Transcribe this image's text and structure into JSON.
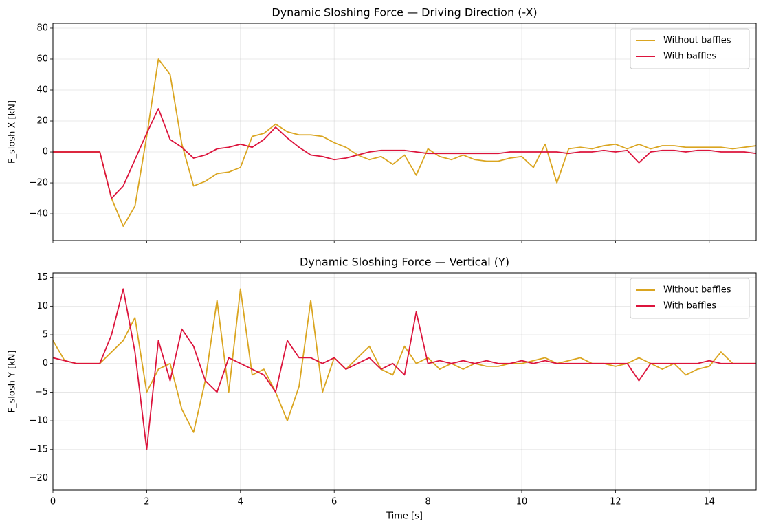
{
  "chart_data": [
    {
      "type": "line",
      "title": "Dynamic Sloshing Force — Driving Direction (-X)",
      "ylabel": "F_slosh X [kN]",
      "x": [
        0,
        0.25,
        0.5,
        0.75,
        1,
        1.25,
        1.5,
        1.75,
        2,
        2.25,
        2.5,
        2.75,
        3,
        3.25,
        3.5,
        3.75,
        4,
        4.25,
        4.5,
        4.75,
        5,
        5.25,
        5.5,
        5.75,
        6,
        6.25,
        6.5,
        6.75,
        7,
        7.25,
        7.5,
        7.75,
        8,
        8.25,
        8.5,
        8.75,
        9,
        9.25,
        9.5,
        9.75,
        10,
        10.25,
        10.5,
        10.75,
        11,
        11.25,
        11.5,
        11.75,
        12,
        12.25,
        12.5,
        12.75,
        13,
        13.25,
        13.5,
        13.75,
        14,
        14.25,
        14.5,
        14.75,
        15
      ],
      "series": [
        {
          "name": "Without baffles",
          "color": "#daa520",
          "values": [
            0,
            0,
            0,
            0,
            0,
            -30,
            -48,
            -35,
            10,
            60,
            50,
            5,
            -22,
            -19,
            -14,
            -13,
            -10,
            10,
            12,
            18,
            13,
            11,
            11,
            10,
            6,
            3,
            -2,
            -5,
            -3,
            -8,
            -2,
            -15,
            2,
            -3,
            -5,
            -2,
            -5,
            -6,
            -6,
            -4,
            -3,
            -10,
            5,
            -20,
            2,
            3,
            2,
            4,
            5,
            2,
            5,
            2,
            4,
            4,
            3,
            3,
            3,
            3,
            2,
            3,
            4
          ]
        },
        {
          "name": "With baffles",
          "color": "#dc143c",
          "values": [
            0,
            0,
            0,
            0,
            0,
            -30,
            -22,
            -5,
            12,
            28,
            8,
            3,
            -4,
            -2,
            2,
            3,
            5,
            3,
            8,
            16,
            9,
            3,
            -2,
            -3,
            -5,
            -4,
            -2,
            0,
            1,
            1,
            1,
            0,
            -1,
            -1,
            -1,
            -1,
            -1,
            -1,
            -1,
            0,
            0,
            0,
            0,
            0,
            -1,
            0,
            0,
            1,
            0,
            1,
            -7,
            0,
            1,
            1,
            0,
            1,
            1,
            0,
            0,
            0,
            -1
          ]
        }
      ],
      "xlim": [
        0,
        15
      ],
      "xticks": [
        0,
        2,
        4,
        6,
        8,
        10,
        12,
        14
      ],
      "ylim": [
        -57.3,
        83.1
      ],
      "yticks": [
        {
          "value": -40,
          "label": "−40"
        },
        {
          "value": -20,
          "label": "−20"
        },
        0,
        20,
        40,
        60,
        80
      ],
      "grid": true,
      "legend": "upper right"
    },
    {
      "type": "line",
      "title": "Dynamic Sloshing Force — Vertical (Y)",
      "ylabel": "F_slosh Y [kN]",
      "xlabel": "Time [s]",
      "x": [
        0,
        0.25,
        0.5,
        0.75,
        1,
        1.25,
        1.5,
        1.75,
        2,
        2.25,
        2.5,
        2.75,
        3,
        3.25,
        3.5,
        3.75,
        4,
        4.25,
        4.5,
        4.75,
        5,
        5.25,
        5.5,
        5.75,
        6,
        6.25,
        6.5,
        6.75,
        7,
        7.25,
        7.5,
        7.75,
        8,
        8.25,
        8.5,
        8.75,
        9,
        9.25,
        9.5,
        9.75,
        10,
        10.25,
        10.5,
        10.75,
        11,
        11.25,
        11.5,
        11.75,
        12,
        12.25,
        12.5,
        12.75,
        13,
        13.25,
        13.5,
        13.75,
        14,
        14.25,
        14.5,
        14.75,
        15
      ],
      "series": [
        {
          "name": "Without baffles",
          "color": "#daa520",
          "values": [
            4,
            0.5,
            0,
            0,
            0,
            2,
            4,
            8,
            -5,
            -1,
            0,
            -8,
            -12,
            -3,
            11,
            -5,
            13,
            -2,
            -1,
            -5,
            -10,
            -4,
            11,
            -5,
            1,
            -1,
            1,
            3,
            -1,
            -2,
            3,
            0,
            1,
            -1,
            0,
            -1,
            0,
            -0.5,
            -0.5,
            0,
            0,
            0.5,
            1,
            0,
            0.5,
            1,
            0,
            0,
            -0.5,
            0,
            1,
            0,
            -1,
            0,
            -2,
            -1,
            -0.5,
            2,
            0,
            0,
            0
          ]
        },
        {
          "name": "With baffles",
          "color": "#dc143c",
          "values": [
            1,
            0.5,
            0,
            0,
            0,
            5,
            13,
            2,
            -15,
            4,
            -3,
            6,
            3,
            -3,
            -5,
            1,
            0,
            -1,
            -2,
            -5,
            4,
            1,
            1,
            0,
            1,
            -1,
            0,
            1,
            -1,
            0,
            -2,
            9,
            0,
            0.5,
            0,
            0.5,
            0,
            0.5,
            0,
            0,
            0.5,
            0,
            0.5,
            0,
            0,
            0,
            0,
            0,
            0,
            0,
            -3,
            0,
            0,
            0,
            0,
            0,
            0.5,
            0,
            0,
            0,
            0
          ]
        }
      ],
      "xlim": [
        0,
        15
      ],
      "xticks": [
        0,
        2,
        4,
        6,
        8,
        10,
        12,
        14
      ],
      "ylim": [
        -22.1,
        15.8
      ],
      "yticks": [
        {
          "value": -20,
          "label": "−20"
        },
        {
          "value": -15,
          "label": "−15"
        },
        {
          "value": -10,
          "label": "−10"
        },
        {
          "value": -5,
          "label": "−5"
        },
        0,
        5,
        10,
        15
      ],
      "grid": true,
      "legend": "upper right"
    }
  ]
}
